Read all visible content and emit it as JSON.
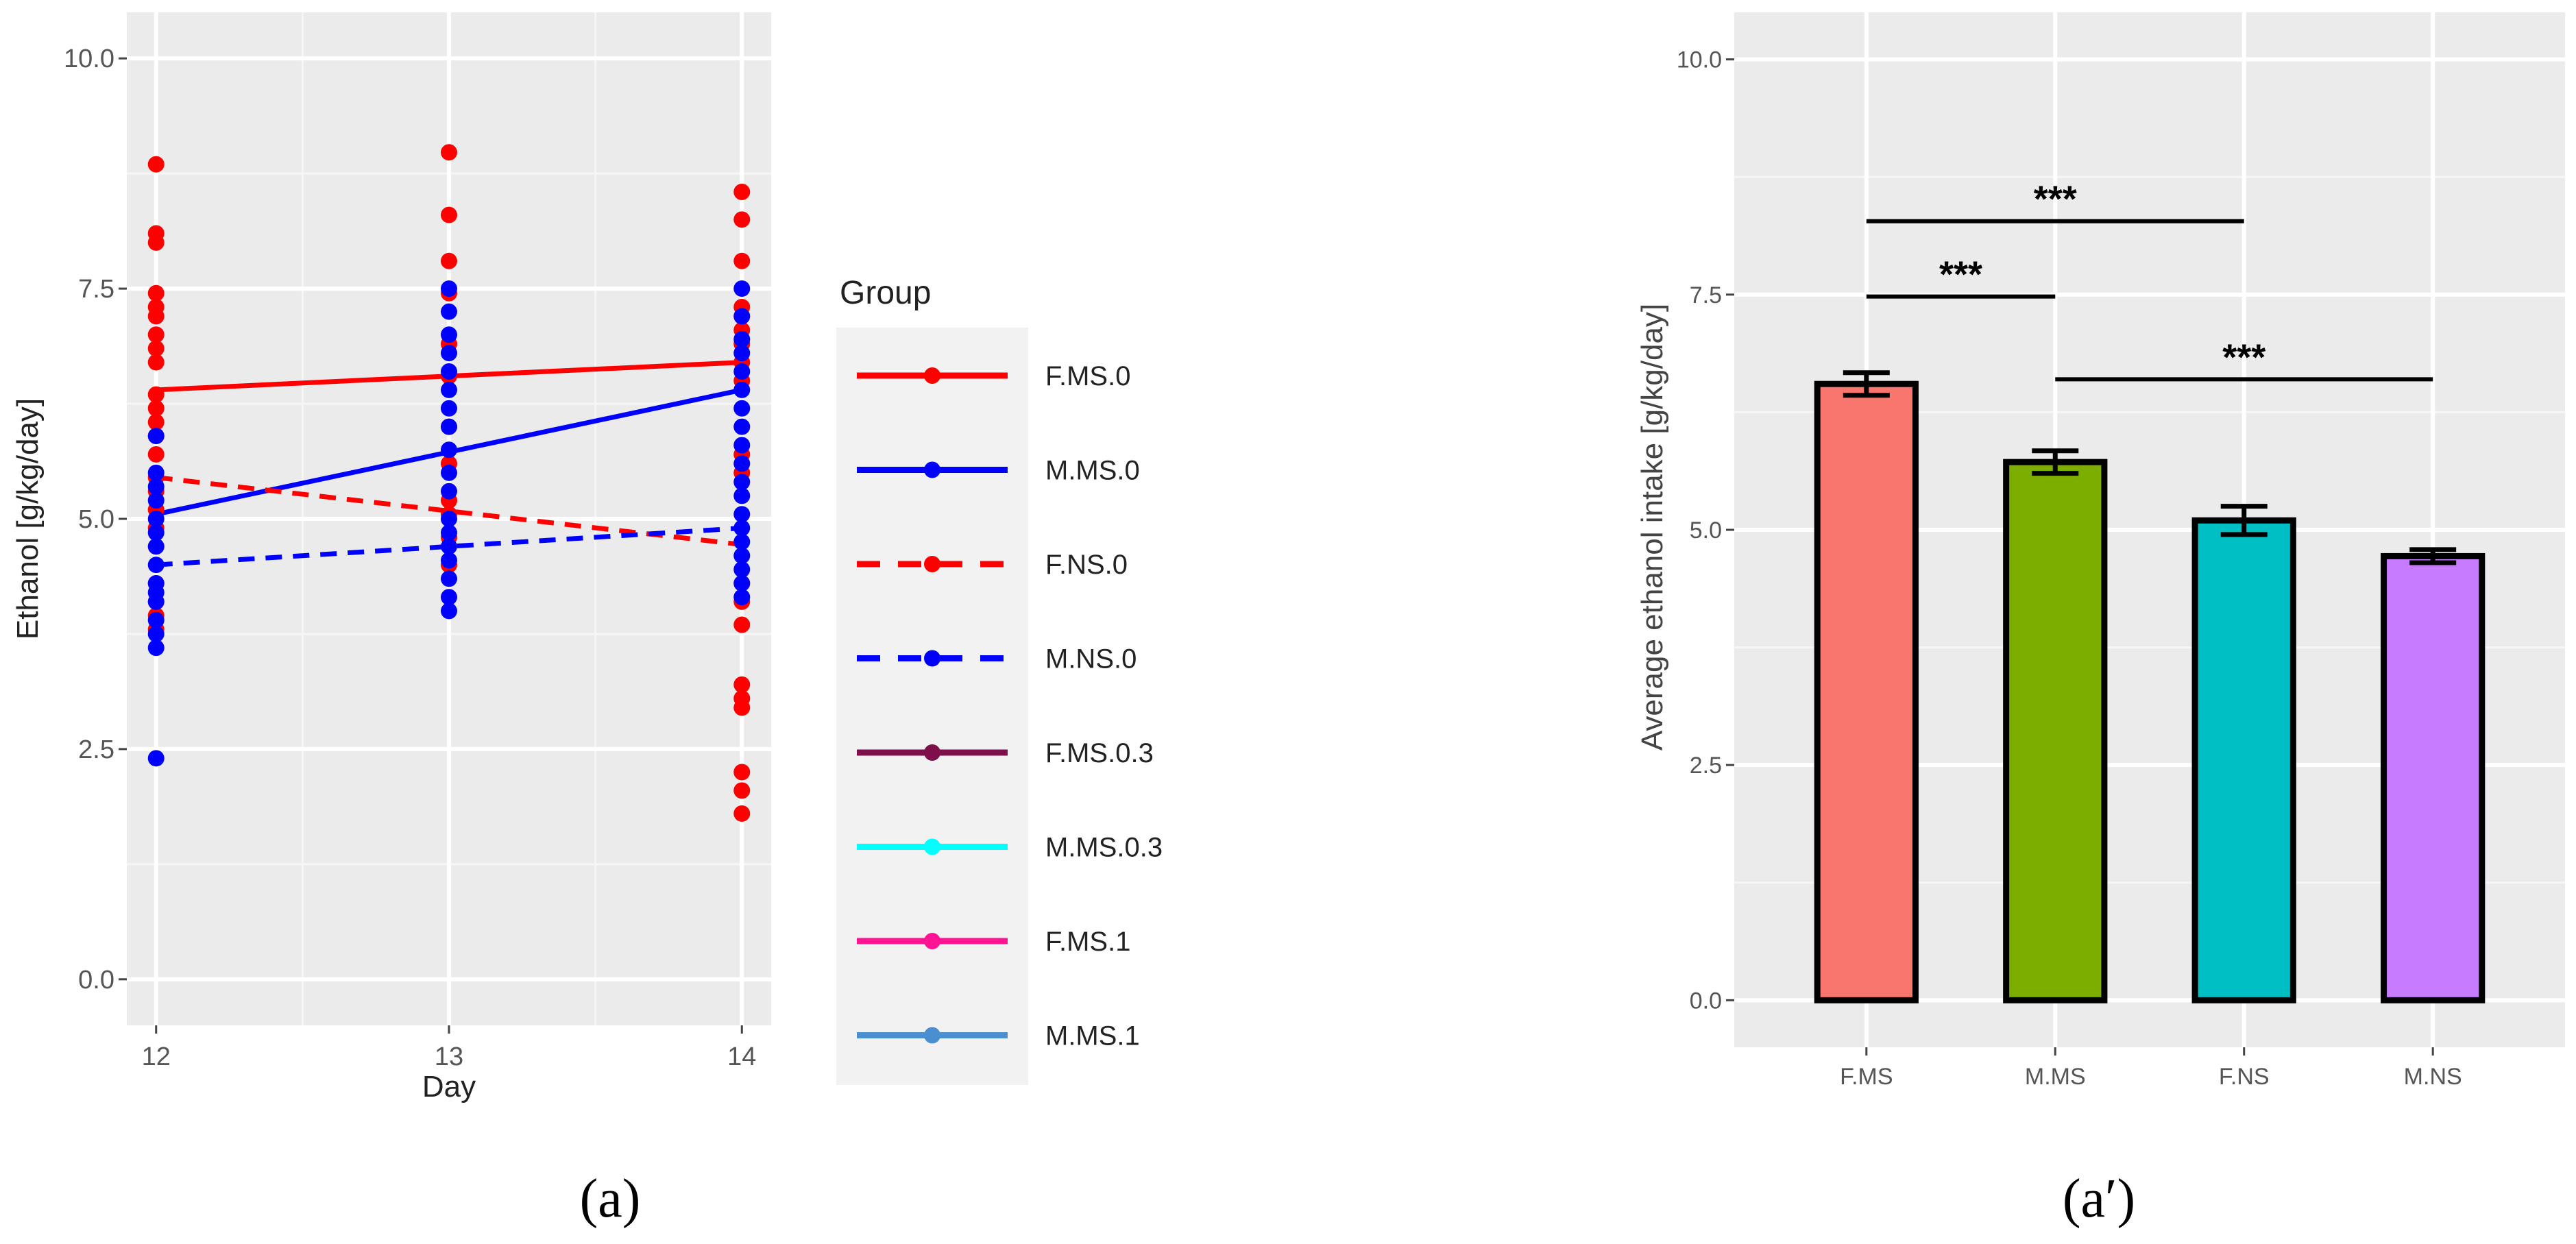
{
  "chart_data": [
    {
      "type": "scatter",
      "panel_label": "(a)",
      "title": "",
      "xlabel": "Day",
      "ylabel": "Ethanol [g/kg/day]",
      "x_ticks": [
        12,
        13,
        14
      ],
      "y_ticks": [
        0.0,
        2.5,
        5.0,
        7.5,
        10.0
      ],
      "y_tick_labels": [
        "0.0",
        "2.5",
        "5.0",
        "7.5",
        "10.0"
      ],
      "xlim": [
        11.9,
        14.1
      ],
      "ylim": [
        -0.5,
        10.5
      ],
      "grid": true,
      "legend_placement": "right",
      "legend": {
        "title": "Group",
        "entries": [
          {
            "label": "F.MS.0",
            "color": "#ff0000",
            "dashed": false
          },
          {
            "label": "M.MS.0",
            "color": "#0000ff",
            "dashed": false
          },
          {
            "label": "F.NS.0",
            "color": "#ff0000",
            "dashed": true
          },
          {
            "label": "M.NS.0",
            "color": "#0000ff",
            "dashed": true
          },
          {
            "label": "F.MS.0.3",
            "color": "#7f0f4a",
            "dashed": false
          },
          {
            "label": "M.MS.0.3",
            "color": "#00ffff",
            "dashed": false
          },
          {
            "label": "F.MS.1",
            "color": "#ff1493",
            "dashed": false
          },
          {
            "label": "M.MS.1",
            "color": "#4a90d0",
            "dashed": false
          }
        ]
      },
      "lines": [
        {
          "name": "F.MS.0",
          "color": "#ff0000",
          "dashed": false,
          "x": [
            12,
            14
          ],
          "y": [
            6.4,
            6.7
          ]
        },
        {
          "name": "M.MS.0",
          "color": "#0000ff",
          "dashed": false,
          "x": [
            12,
            14
          ],
          "y": [
            5.05,
            6.4
          ]
        },
        {
          "name": "F.NS.0",
          "color": "#ff0000",
          "dashed": true,
          "x": [
            12,
            14
          ],
          "y": [
            5.45,
            4.72
          ]
        },
        {
          "name": "M.NS.0",
          "color": "#0000ff",
          "dashed": true,
          "x": [
            12,
            14
          ],
          "y": [
            4.5,
            4.9
          ]
        }
      ],
      "points": [
        {
          "series": "F",
          "color": "#ff0000",
          "x": 12,
          "y": [
            8.85,
            8.1,
            8.0,
            7.45,
            7.3,
            7.2,
            7.0,
            6.85,
            6.7,
            6.35,
            6.2,
            6.05,
            5.9,
            5.7,
            5.45,
            5.3,
            5.1,
            4.9,
            4.7,
            4.3,
            4.1,
            3.95,
            3.8
          ]
        },
        {
          "series": "M",
          "color": "#0000ff",
          "x": 12,
          "y": [
            5.9,
            5.5,
            5.35,
            5.2,
            5.0,
            4.85,
            4.7,
            4.5,
            4.3,
            4.2,
            4.1,
            3.9,
            3.75,
            3.6,
            2.4
          ]
        },
        {
          "series": "F",
          "color": "#ff0000",
          "x": 13,
          "y": [
            8.98,
            8.3,
            7.8,
            7.45,
            6.9,
            6.55,
            6.0,
            5.6,
            5.2,
            5.05,
            4.8,
            4.5
          ]
        },
        {
          "series": "M",
          "color": "#0000ff",
          "x": 13,
          "y": [
            7.5,
            7.25,
            7.0,
            6.8,
            6.6,
            6.4,
            6.2,
            6.0,
            5.75,
            5.5,
            5.3,
            5.0,
            4.85,
            4.7,
            4.55,
            4.35,
            4.15,
            4.0
          ]
        },
        {
          "series": "F",
          "color": "#ff0000",
          "x": 14,
          "y": [
            8.55,
            8.25,
            7.8,
            7.3,
            7.2,
            7.05,
            6.9,
            6.7,
            6.5,
            5.7,
            5.5,
            4.3,
            4.1,
            3.85,
            3.2,
            3.05,
            2.95,
            2.25,
            2.05,
            1.8
          ]
        },
        {
          "series": "M",
          "color": "#0000ff",
          "x": 14,
          "y": [
            7.5,
            7.2,
            6.95,
            6.8,
            6.6,
            6.4,
            6.2,
            6.0,
            5.8,
            5.6,
            5.4,
            5.25,
            5.05,
            4.9,
            4.75,
            4.6,
            4.45,
            4.3,
            4.15
          ]
        }
      ]
    },
    {
      "type": "bar",
      "panel_label": "(a′)",
      "title": "",
      "xlabel": "",
      "ylabel": "Average ethanol intake [g/kg/day]",
      "categories": [
        "F.MS",
        "M.MS",
        "F.NS",
        "M.NS"
      ],
      "values": [
        6.55,
        5.72,
        5.1,
        4.72
      ],
      "errors": [
        0.12,
        0.12,
        0.15,
        0.07
      ],
      "colors": [
        "#f8766d",
        "#7cae00",
        "#00bfc4",
        "#c77cff"
      ],
      "y_ticks": [
        0.0,
        2.5,
        5.0,
        7.5,
        10.0
      ],
      "y_tick_labels": [
        "0.0",
        "2.5",
        "5.0",
        "7.5",
        "10.0"
      ],
      "ylim": [
        -0.5,
        10.5
      ],
      "grid": true,
      "annotations": [
        {
          "from": "F.MS",
          "to": "M.MS",
          "y": 7.48,
          "text": "***"
        },
        {
          "from": "F.MS",
          "to": "F.NS",
          "y": 8.28,
          "text": "***"
        },
        {
          "from": "M.MS",
          "to": "M.NS",
          "y": 6.6,
          "text": "***"
        }
      ]
    }
  ]
}
